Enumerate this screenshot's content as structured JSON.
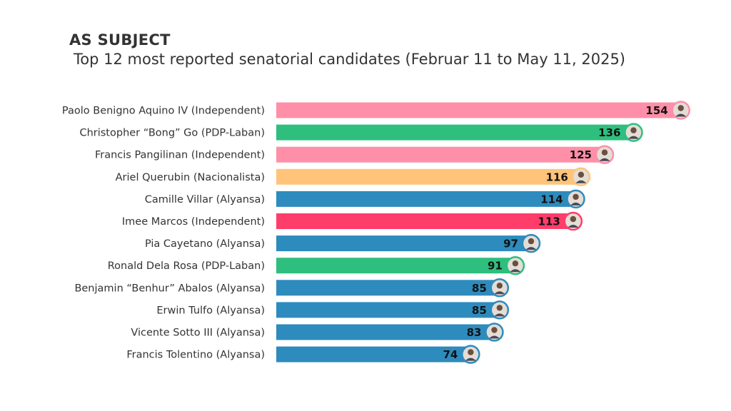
{
  "chart_data": {
    "type": "bar",
    "orientation": "horizontal",
    "title": "AS SUBJECT",
    "subtitle": "Top 12 most reported senatorial candidates (Februar 11 to May 11, 2025)",
    "categories": [
      "Paolo Benigno Aquino IV (Independent)",
      "Christopher “Bong” Go (PDP-Laban)",
      "Francis Pangilinan (Independent)",
      "Ariel Querubin (Nacionalista)",
      "Camille Villar (Alyansa)",
      "Imee Marcos (Independent)",
      "Pia Cayetano (Alyansa)",
      "Ronald Dela Rosa (PDP-Laban)",
      "Benjamin “Benhur” Abalos (Alyansa)",
      "Erwin Tulfo (Alyansa)",
      "Vicente Sotto III (Alyansa)",
      "Francis Tolentino (Alyansa)"
    ],
    "values": [
      154,
      136,
      125,
      116,
      114,
      113,
      97,
      91,
      85,
      85,
      83,
      74
    ],
    "colors": [
      "#ff8fa8",
      "#2ebf7e",
      "#ff8fa8",
      "#ffc47a",
      "#2e8bbd",
      "#ff3d6b",
      "#2e8bbd",
      "#2ebf7e",
      "#2e8bbd",
      "#2e8bbd",
      "#2e8bbd",
      "#2e8bbd"
    ],
    "avatar_icon": "candidate-photo-icon",
    "xlim": [
      0,
      160
    ],
    "grid": false,
    "legend": "none"
  }
}
